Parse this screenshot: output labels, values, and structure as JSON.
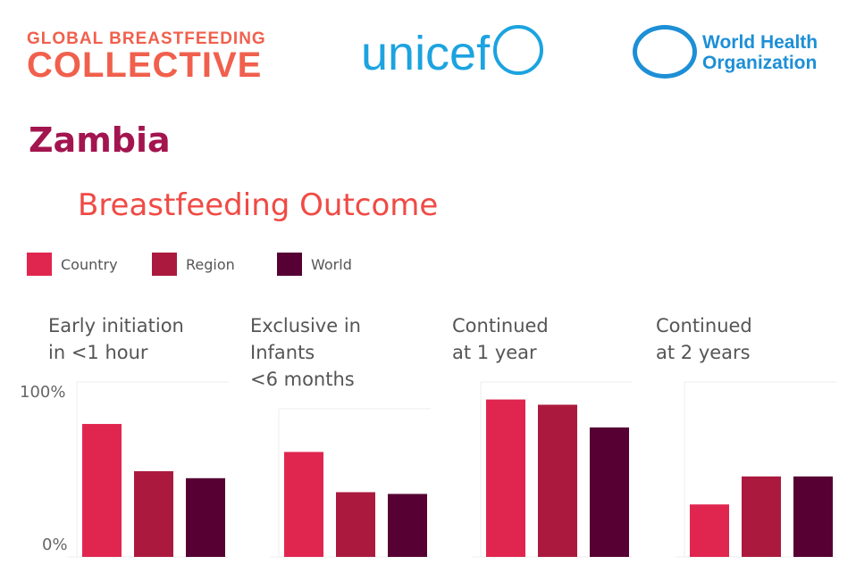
{
  "logos": {
    "gbc_line1": "GLOBAL BREASTFEEDING",
    "gbc_line2": "COLLECTIVE",
    "unicef": "unicef",
    "who_line1": "World Health",
    "who_line2": "Organization"
  },
  "country": "Zambia",
  "subtitle": "Breastfeeding Outcome",
  "legend": [
    {
      "label": "Country",
      "color": "#e0264f"
    },
    {
      "label": "Region",
      "color": "#ab1a3e"
    },
    {
      "label": "World",
      "color": "#560033"
    }
  ],
  "chart_data": {
    "type": "bar",
    "yticks": [
      "100%",
      "0%"
    ],
    "ylim": [
      0,
      100
    ],
    "series_names": [
      "Country",
      "Region",
      "World"
    ],
    "colors": [
      "#e0264f",
      "#ab1a3e",
      "#560033"
    ],
    "panels": [
      {
        "title": [
          "Early initiation",
          "in <1 hour"
        ],
        "values": [
          76,
          49,
          45
        ]
      },
      {
        "title": [
          "Exclusive in",
          "Infants",
          "<6 months"
        ],
        "values": [
          60,
          37,
          36
        ]
      },
      {
        "title": [
          "Continued",
          "at 1 year"
        ],
        "values": [
          90,
          87,
          74
        ]
      },
      {
        "title": [
          "Continued",
          "at 2 years"
        ],
        "values": [
          30,
          46,
          46
        ]
      }
    ]
  }
}
